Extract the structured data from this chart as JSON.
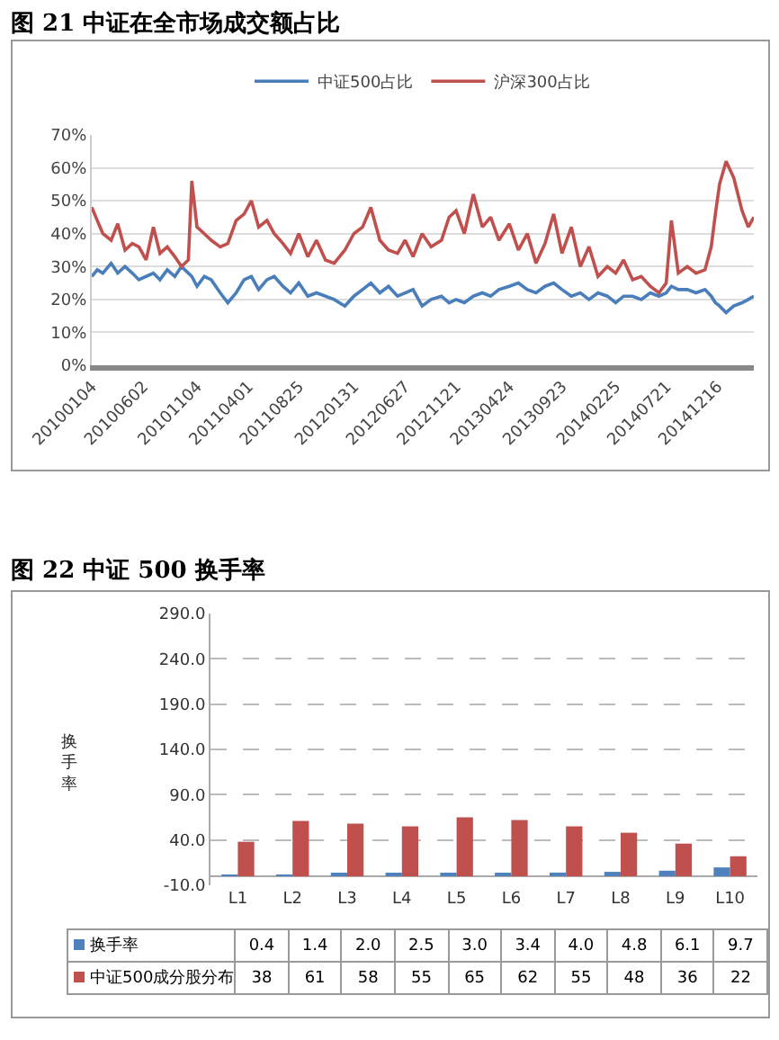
{
  "chart_data": [
    {
      "type": "line",
      "title": "图 21  中证在全市场成交额占比",
      "legend": "top",
      "grid": "y",
      "marker": "none",
      "x": [
        "2010-01-04",
        "2010-01-20",
        "2010-02-05",
        "2010-03-01",
        "2010-03-20",
        "2010-04-10",
        "2010-05-01",
        "2010-05-20",
        "2010-06-10",
        "2010-07-01",
        "2010-07-20",
        "2010-08-10",
        "2010-09-01",
        "2010-09-20",
        "2010-10-10",
        "2010-10-20",
        "2010-11-04",
        "2010-11-25",
        "2010-12-15",
        "2011-01-10",
        "2011-02-01",
        "2011-02-25",
        "2011-03-20",
        "2011-04-10",
        "2011-05-01",
        "2011-05-25",
        "2011-06-15",
        "2011-07-10",
        "2011-08-01",
        "2011-08-25",
        "2011-09-20",
        "2011-10-15",
        "2011-11-10",
        "2011-12-05",
        "2012-01-05",
        "2012-01-31",
        "2012-02-25",
        "2012-03-20",
        "2012-04-15",
        "2012-05-10",
        "2012-06-05",
        "2012-06-27",
        "2012-07-20",
        "2012-08-15",
        "2012-09-10",
        "2012-10-10",
        "2012-11-01",
        "2012-11-21",
        "2012-12-15",
        "2013-01-10",
        "2013-02-05",
        "2013-03-01",
        "2013-03-25",
        "2013-04-24",
        "2013-05-20",
        "2013-06-15",
        "2013-07-10",
        "2013-08-05",
        "2013-08-30",
        "2013-09-23",
        "2013-10-20",
        "2013-11-15",
        "2013-12-10",
        "2014-01-05",
        "2014-02-01",
        "2014-02-25",
        "2014-03-20",
        "2014-04-15",
        "2014-05-10",
        "2014-06-05",
        "2014-06-30",
        "2014-07-21",
        "2014-08-05",
        "2014-08-25",
        "2014-09-20",
        "2014-10-15",
        "2014-11-10",
        "2014-11-28",
        "2014-12-10",
        "2014-12-22",
        "2015-01-10",
        "2015-02-01",
        "2015-02-25",
        "2015-03-15",
        "2015-03-31"
      ],
      "series": [
        {
          "name": "中证500占比",
          "color": "#4a7ebb",
          "values": [
            27,
            29,
            28,
            31,
            28,
            30,
            28,
            26,
            27,
            28,
            26,
            29,
            27,
            30,
            28,
            27,
            24,
            27,
            26,
            22,
            19,
            22,
            26,
            27,
            23,
            26,
            27,
            24,
            22,
            25,
            21,
            22,
            21,
            20,
            18,
            21,
            23,
            25,
            22,
            24,
            21,
            22,
            23,
            18,
            20,
            21,
            19,
            20,
            19,
            21,
            22,
            21,
            23,
            24,
            25,
            23,
            22,
            24,
            25,
            23,
            21,
            22,
            20,
            22,
            21,
            19,
            21,
            21,
            20,
            22,
            21,
            22,
            24,
            23,
            23,
            22,
            23,
            21,
            19,
            18,
            16,
            18,
            19,
            20,
            21
          ]
        },
        {
          "name": "沪深300占比",
          "color": "#c0504d",
          "values": [
            48,
            44,
            40,
            38,
            43,
            35,
            37,
            36,
            32,
            42,
            34,
            36,
            33,
            30,
            32,
            56,
            42,
            40,
            38,
            36,
            37,
            44,
            46,
            50,
            42,
            44,
            40,
            37,
            34,
            40,
            33,
            38,
            32,
            31,
            35,
            40,
            42,
            48,
            38,
            35,
            34,
            38,
            33,
            40,
            36,
            38,
            45,
            47,
            40,
            52,
            42,
            45,
            38,
            43,
            35,
            40,
            31,
            37,
            46,
            34,
            42,
            30,
            36,
            27,
            30,
            28,
            32,
            26,
            27,
            24,
            22,
            25,
            44,
            28,
            30,
            28,
            29,
            36,
            46,
            55,
            62,
            57,
            47,
            42,
            45
          ]
        }
      ],
      "xlim": [
        "2010-01-04",
        "2015-03-31"
      ],
      "xticks": [
        {
          "value": "2010-01-04",
          "label": "20100104"
        },
        {
          "value": "2010-06-02",
          "label": "20100602"
        },
        {
          "value": "2010-11-04",
          "label": "20101104"
        },
        {
          "value": "2011-04-01",
          "label": "20110401"
        },
        {
          "value": "2011-08-25",
          "label": "20110825"
        },
        {
          "value": "2012-01-31",
          "label": "20120131"
        },
        {
          "value": "2012-06-27",
          "label": "20120627"
        },
        {
          "value": "2012-11-21",
          "label": "20121121"
        },
        {
          "value": "2013-04-24",
          "label": "20130424"
        },
        {
          "value": "2013-09-23",
          "label": "20130923"
        },
        {
          "value": "2014-02-25",
          "label": "20140225"
        },
        {
          "value": "2014-07-21",
          "label": "20140721"
        },
        {
          "value": "2014-12-16",
          "label": "20141216"
        }
      ],
      "ylim": [
        0,
        70
      ],
      "yticks": [
        {
          "value": 0,
          "label": "0%"
        },
        {
          "value": 10,
          "label": "10%"
        },
        {
          "value": 20,
          "label": "20%"
        },
        {
          "value": 30,
          "label": "30%"
        },
        {
          "value": 40,
          "label": "40%"
        },
        {
          "value": 50,
          "label": "50%"
        },
        {
          "value": 60,
          "label": "60%"
        },
        {
          "value": 70,
          "label": "70%"
        }
      ]
    },
    {
      "type": "bar",
      "title": "图 22  中证 500  换手率",
      "ylabel": "换手率",
      "grid": "y",
      "legend": "bottom",
      "data_labels": true,
      "categories": [
        "L1",
        "L2",
        "L3",
        "L4",
        "L5",
        "L6",
        "L7",
        "L8",
        "L9",
        "L10"
      ],
      "series": [
        {
          "name": "换手率",
          "color": "#4f81bd",
          "values": [
            0.4,
            1.4,
            2.0,
            2.5,
            3.0,
            3.4,
            4.0,
            4.8,
            6.1,
            9.7
          ],
          "value_labels": [
            "0.4",
            "1.4",
            "2.0",
            "2.5",
            "3.0",
            "3.4",
            "4.0",
            "4.8",
            "6.1",
            "9.7"
          ]
        },
        {
          "name": "中证500成分股分布",
          "color": "#c0504d",
          "values": [
            38,
            61,
            58,
            55,
            65,
            62,
            55,
            48,
            36,
            22
          ],
          "value_labels": [
            "38",
            "61",
            "58",
            "55",
            "65",
            "62",
            "55",
            "48",
            "36",
            "22"
          ]
        }
      ],
      "ylim": [
        -10,
        290
      ],
      "yticks": [
        {
          "value": -10,
          "label": "-10.0"
        },
        {
          "value": 40,
          "label": "40.0"
        },
        {
          "value": 90,
          "label": "90.0"
        },
        {
          "value": 140,
          "label": "140.0"
        },
        {
          "value": 190,
          "label": "190.0"
        },
        {
          "value": 240,
          "label": "240.0"
        },
        {
          "value": 290,
          "label": "290.0"
        }
      ]
    }
  ]
}
